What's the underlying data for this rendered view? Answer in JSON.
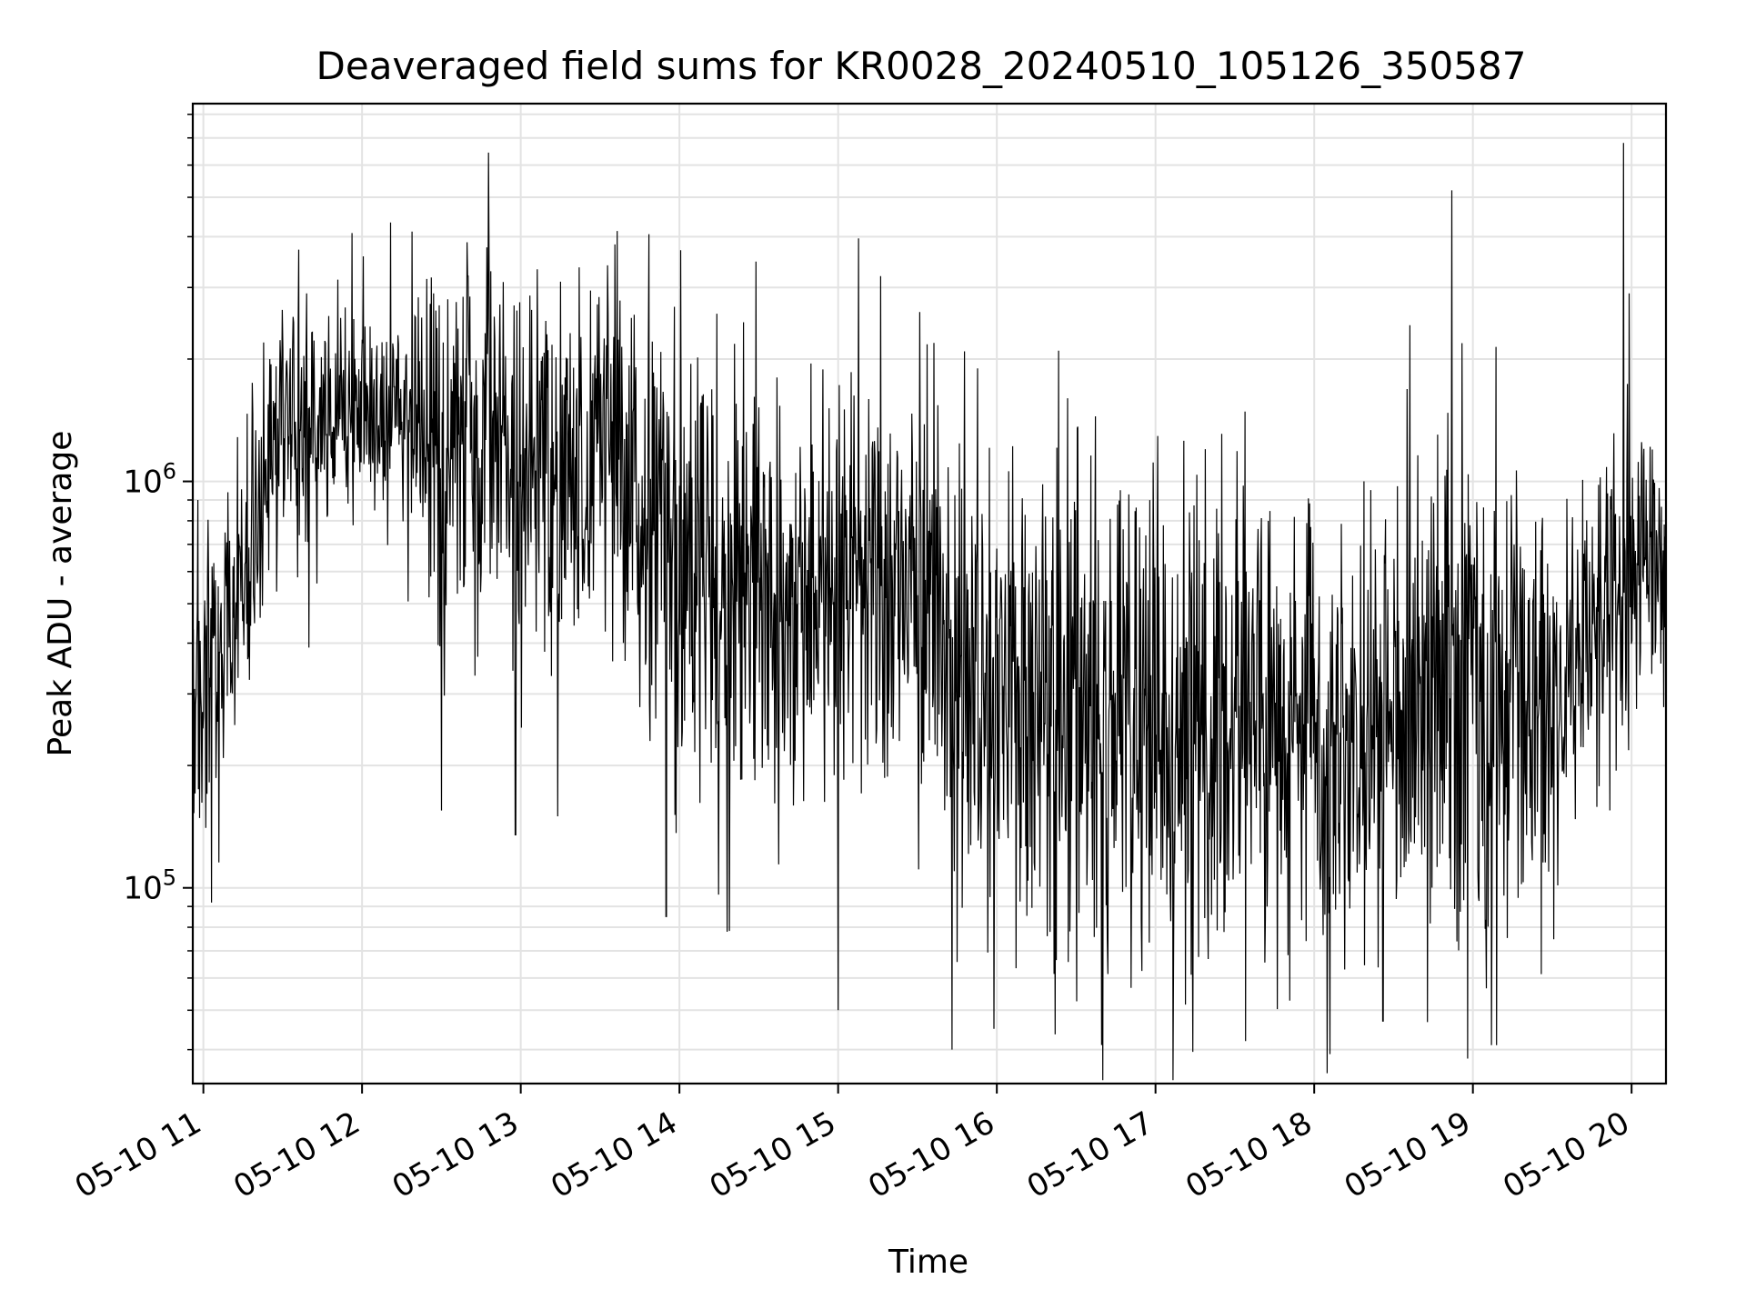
{
  "chart_data": {
    "type": "line",
    "title": "Deaveraged field sums for KR0028_20240510_105126_350587",
    "xlabel": "Time",
    "ylabel": "Peak ADU - average",
    "y_scale": "log",
    "ylim": [
      33000,
      8500000
    ],
    "xlim": [
      "2024-05-10 10:56",
      "2024-05-10 20:13"
    ],
    "grid": true,
    "x_ticks": [
      "05-10 11",
      "05-10 12",
      "05-10 13",
      "05-10 14",
      "05-10 15",
      "05-10 16",
      "05-10 17",
      "05-10 18",
      "05-10 19",
      "05-10 20"
    ],
    "y_ticks": [
      {
        "value": 100000,
        "base": "10",
        "exp": "5"
      },
      {
        "value": 1000000,
        "base": "10",
        "exp": "6"
      }
    ],
    "line_color": "#000000",
    "series": [
      {
        "time": [
          "2024-05-10 10:56",
          "2024-05-10 11:05",
          "2024-05-10 11:15",
          "2024-05-10 11:30",
          "2024-05-10 11:45",
          "2024-05-10 12:00",
          "2024-05-10 12:15",
          "2024-05-10 12:30",
          "2024-05-10 12:45",
          "2024-05-10 13:00",
          "2024-05-10 13:15",
          "2024-05-10 13:30",
          "2024-05-10 13:45",
          "2024-05-10 14:00",
          "2024-05-10 14:15",
          "2024-05-10 14:30",
          "2024-05-10 14:45",
          "2024-05-10 15:00",
          "2024-05-10 15:15",
          "2024-05-10 15:30",
          "2024-05-10 15:45",
          "2024-05-10 16:00",
          "2024-05-10 16:15",
          "2024-05-10 16:30",
          "2024-05-10 16:45",
          "2024-05-10 17:00",
          "2024-05-10 17:15",
          "2024-05-10 17:30",
          "2024-05-10 17:45",
          "2024-05-10 18:00",
          "2024-05-10 18:15",
          "2024-05-10 18:30",
          "2024-05-10 18:45",
          "2024-05-10 19:00",
          "2024-05-10 19:15",
          "2024-05-10 19:30",
          "2024-05-10 19:45",
          "2024-05-10 20:00",
          "2024-05-10 20:13"
        ],
        "values": [
          250000,
          350000,
          550000,
          1400000,
          1500000,
          1600000,
          1500000,
          1100000,
          1300000,
          1000000,
          1200000,
          1300000,
          900000,
          700000,
          500000,
          600000,
          450000,
          550000,
          650000,
          500000,
          350000,
          300000,
          280000,
          250000,
          240000,
          240000,
          250000,
          270000,
          260000,
          240000,
          250000,
          280000,
          320000,
          330000,
          330000,
          300000,
          450000,
          550000,
          600000
        ],
        "spread": [
          0.35,
          0.35,
          0.4,
          0.3,
          0.3,
          0.3,
          0.35,
          0.45,
          0.5,
          0.45,
          0.45,
          0.45,
          0.5,
          0.6,
          0.55,
          0.6,
          0.55,
          0.55,
          0.55,
          0.6,
          0.6,
          0.55,
          0.6,
          0.7,
          0.65,
          0.6,
          0.6,
          0.55,
          0.55,
          0.55,
          0.55,
          0.55,
          0.6,
          0.6,
          0.6,
          0.55,
          0.45,
          0.4,
          0.35
        ],
        "spikes": [
          {
            "time": "2024-05-10 10:58",
            "value": 900000
          },
          {
            "time": "2024-05-10 11:03",
            "value": 92000
          },
          {
            "time": "2024-05-10 11:39",
            "value": 2900000
          },
          {
            "time": "2024-05-10 11:40",
            "value": 390000
          },
          {
            "time": "2024-05-10 12:27",
            "value": 2900000
          },
          {
            "time": "2024-05-10 12:30",
            "value": 155000
          },
          {
            "time": "2024-05-10 12:40",
            "value": 3200000
          },
          {
            "time": "2024-05-10 12:58",
            "value": 135000
          },
          {
            "time": "2024-05-10 13:15",
            "value": 3100000
          },
          {
            "time": "2024-05-10 13:14",
            "value": 150000
          },
          {
            "time": "2024-05-10 13:55",
            "value": 85000
          },
          {
            "time": "2024-05-10 14:18",
            "value": 78000
          },
          {
            "time": "2024-05-10 15:00",
            "value": 50000
          },
          {
            "time": "2024-05-10 15:16",
            "value": 3200000
          },
          {
            "time": "2024-05-10 15:43",
            "value": 40000
          },
          {
            "time": "2024-05-10 15:59",
            "value": 45000
          },
          {
            "time": "2024-05-10 16:40",
            "value": 33500
          },
          {
            "time": "2024-05-10 17:34",
            "value": 42000
          },
          {
            "time": "2024-05-10 18:06",
            "value": 39000
          },
          {
            "time": "2024-05-10 18:26",
            "value": 47000
          },
          {
            "time": "2024-05-10 18:52",
            "value": 5200000
          },
          {
            "time": "2024-05-10 19:07",
            "value": 41000
          },
          {
            "time": "2024-05-10 19:09",
            "value": 41000
          },
          {
            "time": "2024-05-10 19:57",
            "value": 6800000
          },
          {
            "time": "2024-05-10 19:59",
            "value": 2900000
          }
        ]
      }
    ]
  }
}
